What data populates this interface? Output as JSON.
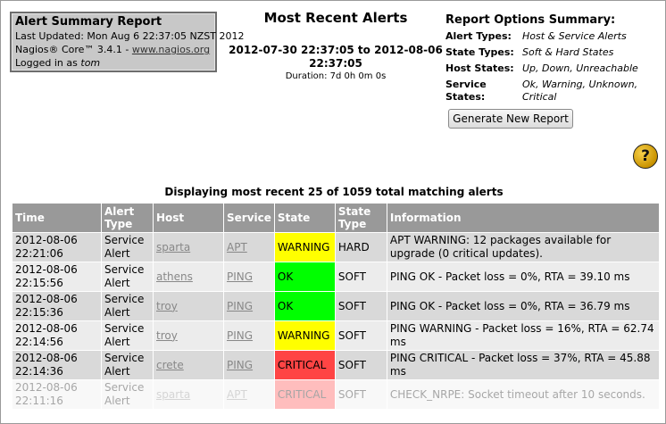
{
  "info_box": {
    "title": "Alert Summary Report",
    "last_updated": "Last Updated: Mon Aug 6 22:37:05 NZST 2012",
    "version_prefix": "Nagios® Core™ 3.4.1 - ",
    "version_link": "www.nagios.org",
    "logged_in_prefix": "Logged in as ",
    "user": "tom"
  },
  "center": {
    "title": "Most Recent Alerts",
    "range": "2012-07-30 22:37:05 to 2012-08-06 22:37:05",
    "duration": "Duration: 7d 0h 0m 0s"
  },
  "options": {
    "title": "Report Options Summary:",
    "rows": [
      {
        "key": "Alert Types:",
        "value": "Host & Service Alerts"
      },
      {
        "key": "State Types:",
        "value": "Soft & Hard States"
      },
      {
        "key": "Host States:",
        "value": "Up, Down, Unreachable"
      },
      {
        "key": "Service States:",
        "value": "Ok, Warning, Unknown, Critical"
      }
    ],
    "button_label": "Generate New Report"
  },
  "help_icon_glyph": "?",
  "display_title": "Displaying most recent 25 of 1059 total matching alerts",
  "table": {
    "headers": [
      "Time",
      "Alert Type",
      "Host",
      "Service",
      "State",
      "State Type",
      "Information"
    ],
    "rows": [
      {
        "time": "2012-08-06 22:21:06",
        "alert_type": "Service Alert",
        "host": "sparta",
        "service": "APT",
        "state": "WARNING",
        "state_type": "HARD",
        "info": "APT WARNING: 12 packages available for upgrade (0 critical updates)."
      },
      {
        "time": "2012-08-06 22:15:56",
        "alert_type": "Service Alert",
        "host": "athens",
        "service": "PING",
        "state": "OK",
        "state_type": "SOFT",
        "info": "PING OK - Packet loss = 0%, RTA = 39.10 ms"
      },
      {
        "time": "2012-08-06 22:15:36",
        "alert_type": "Service Alert",
        "host": "troy",
        "service": "PING",
        "state": "OK",
        "state_type": "SOFT",
        "info": "PING OK - Packet loss = 0%, RTA = 36.79 ms"
      },
      {
        "time": "2012-08-06 22:14:56",
        "alert_type": "Service Alert",
        "host": "troy",
        "service": "PING",
        "state": "WARNING",
        "state_type": "SOFT",
        "info": "PING WARNING - Packet loss = 16%, RTA = 62.74 ms"
      },
      {
        "time": "2012-08-06 22:14:36",
        "alert_type": "Service Alert",
        "host": "crete",
        "service": "PING",
        "state": "CRITICAL",
        "state_type": "SOFT",
        "info": "PING CRITICAL - Packet loss = 37%, RTA = 45.88 ms"
      },
      {
        "time": "2012-08-06 22:11:16",
        "alert_type": "Service Alert",
        "host": "sparta",
        "service": "APT",
        "state": "CRITICAL",
        "state_type": "SOFT",
        "info": "CHECK_NRPE: Socket timeout after 10 seconds."
      }
    ]
  },
  "colors": {
    "warning": "#ffff00",
    "ok": "#00ff00",
    "critical": "#ff4444",
    "header_bg": "#999999"
  }
}
